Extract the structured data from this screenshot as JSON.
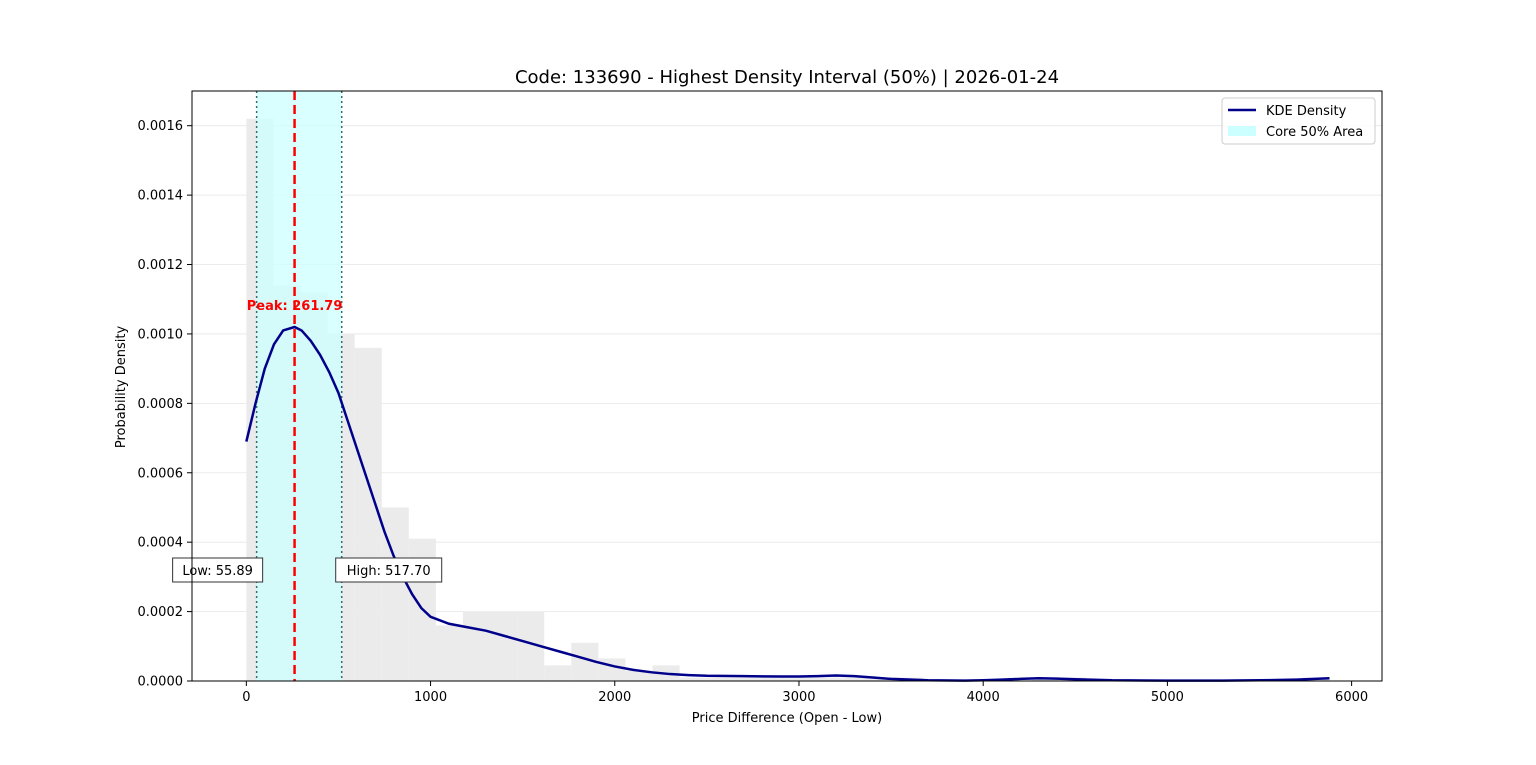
{
  "chart_data": {
    "type": "area",
    "title": "Code: 133690 - Highest Density Interval (50%) | 2026-01-24",
    "xlabel": "Price Difference (Open - Low)",
    "ylabel": "Probability Density",
    "xlim": [
      -295,
      6165
    ],
    "ylim": [
      0,
      0.0017
    ],
    "xticks": [
      0,
      1000,
      2000,
      3000,
      4000,
      5000,
      6000
    ],
    "yticks": [
      0,
      0.0002,
      0.0004,
      0.0006,
      0.0008,
      0.001,
      0.0012,
      0.0014,
      0.0016
    ],
    "xtick_labels": [
      "0",
      "1000",
      "2000",
      "3000",
      "4000",
      "5000",
      "6000"
    ],
    "ytick_labels": [
      "0.0000",
      "0.0002",
      "0.0004",
      "0.0006",
      "0.0008",
      "0.0010",
      "0.0012",
      "0.0014",
      "0.0016"
    ],
    "grid": "horizontal",
    "legend_position": "top-right",
    "colors": {
      "kde": "#00008b",
      "hdi_fill": "#ccffff",
      "histogram": "#ebebeb",
      "peak_line": "#ff0000",
      "bound_line": "#2f6f6f"
    },
    "histogram": {
      "bin_edges": [
        0,
        147,
        294,
        441,
        588,
        735,
        882,
        1029,
        1176,
        1323,
        1470,
        1617,
        1764,
        1911,
        2058,
        2205,
        2352,
        2499,
        2646,
        2793,
        2940,
        3087,
        3234,
        3381,
        3528,
        3675,
        3822,
        3969,
        4116,
        4263,
        4410,
        4557,
        4704,
        4851,
        4998,
        5145,
        5292,
        5439,
        5586,
        5733,
        5880
      ],
      "counts": [
        0.00162,
        0.00114,
        0.00112,
        0.001,
        0.00096,
        0.0005,
        0.00041,
        0.00016,
        0.0002,
        0.0002,
        0.0002,
        4.5e-05,
        0.00011,
        6.5e-05,
        3e-05,
        4.5e-05,
        1e-05,
        1e-05,
        1e-05,
        1e-05,
        1e-05,
        1e-05,
        1e-05,
        1e-05,
        1e-05,
        0.0,
        0.0,
        0.0,
        0.0,
        1e-05,
        1e-05,
        0.0,
        0.0,
        0.0,
        0.0,
        0.0,
        0.0,
        0.0,
        0.0,
        1e-05
      ]
    },
    "series": [
      {
        "name": "KDE Density",
        "x": [
          0,
          50,
          100,
          150,
          200,
          261.79,
          300,
          350,
          400,
          450,
          500,
          550,
          600,
          650,
          700,
          750,
          800,
          850,
          900,
          950,
          1000,
          1100,
          1200,
          1300,
          1400,
          1500,
          1600,
          1700,
          1800,
          1900,
          2000,
          2100,
          2200,
          2300,
          2400,
          2500,
          2700,
          2900,
          3000,
          3100,
          3200,
          3300,
          3400,
          3500,
          3700,
          3900,
          4000,
          4100,
          4200,
          4300,
          4400,
          4500,
          4700,
          5000,
          5300,
          5500,
          5700,
          5800,
          5880
        ],
        "y": [
          0.00069,
          0.0008,
          0.0009,
          0.00097,
          0.00101,
          0.00102,
          0.00101,
          0.00098,
          0.00094,
          0.00089,
          0.00083,
          0.00075,
          0.00067,
          0.00059,
          0.00051,
          0.00043,
          0.00036,
          0.0003,
          0.00025,
          0.00021,
          0.000185,
          0.000165,
          0.000155,
          0.000145,
          0.00013,
          0.000115,
          0.0001,
          8.5e-05,
          7e-05,
          5.5e-05,
          4.2e-05,
          3.2e-05,
          2.5e-05,
          2e-05,
          1.7e-05,
          1.5e-05,
          1.4e-05,
          1.3e-05,
          1.3e-05,
          1.4e-05,
          1.6e-05,
          1.4e-05,
          1e-05,
          6e-06,
          2e-06,
          1e-06,
          2e-06,
          4e-06,
          6e-06,
          8e-06,
          7e-06,
          5e-06,
          2e-06,
          1e-06,
          1e-06,
          2e-06,
          4e-06,
          6e-06,
          8e-06
        ]
      }
    ],
    "hdi": {
      "name": "Core 50% Area",
      "low": 55.89,
      "high": 517.7
    },
    "peak": {
      "x": 261.79
    },
    "annotations": {
      "peak_label": "Peak: 261.79",
      "low_label": "Low: 55.89",
      "high_label": "High: 517.70"
    }
  }
}
